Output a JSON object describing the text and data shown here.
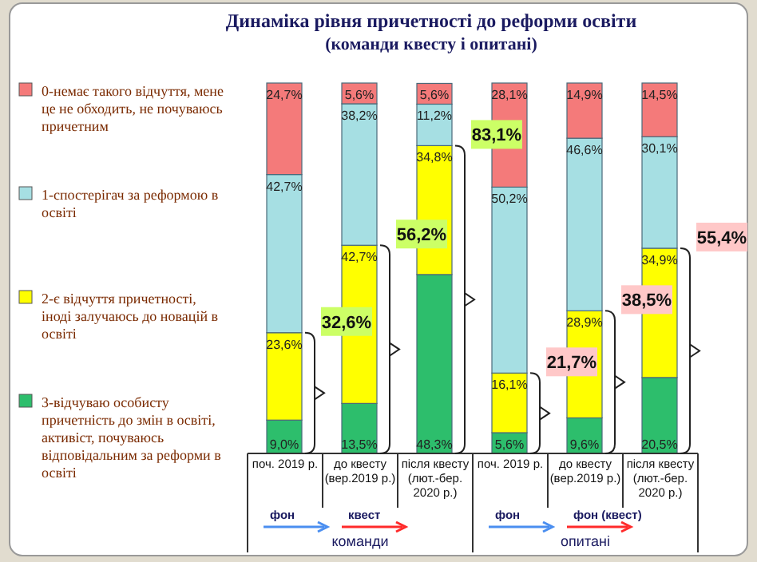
{
  "chart_data": {
    "type": "bar",
    "stacked": true,
    "title": "Динаміка рівня причетності до реформи освіти",
    "subtitle": "(команди квесту і опитані)",
    "categories": [
      "поч. 2019 р.",
      "до квесту (вер.2019 р.)",
      "після квесту (лют.-бер. 2020 р.)",
      "поч. 2019 р.",
      "до квесту (вер.2019 р.)",
      "після квесту (лют.-бер. 2020 р.)"
    ],
    "series": [
      {
        "name": "3-відчуваю особисту причетність до змін в освіті, активіст, почуваюсь відповідальним за реформи в освіті",
        "color": "#2dbe6c",
        "values": [
          9.0,
          13.5,
          48.3,
          5.6,
          9.6,
          20.5
        ],
        "value_labels": [
          "9,0%",
          "13,5%",
          "48,3%",
          "5,6%",
          "9,6%",
          "20,5%"
        ]
      },
      {
        "name": "2-є відчуття причетності, іноді залучаюсь до новацій в освіті",
        "color": "#ffff00",
        "values": [
          23.6,
          42.7,
          34.8,
          16.1,
          28.9,
          34.9
        ],
        "value_labels": [
          "23,6%",
          "42,7%",
          "34,8%",
          "16,1%",
          "28,9%",
          "34,9%"
        ]
      },
      {
        "name": "1-спостерігач за реформою в освіті",
        "color": "#a6dfe3",
        "values": [
          42.7,
          38.2,
          11.2,
          50.2,
          46.6,
          30.1
        ],
        "value_labels": [
          "42,7%",
          "38,2%",
          "11,2%",
          "50,2%",
          "46,6%",
          "30,1%"
        ]
      },
      {
        "name": "0-немає такого відчуття, мене це не обходить, не почуваюсь причетним",
        "color": "#f47a7a",
        "values": [
          24.7,
          5.6,
          5.6,
          28.1,
          14.9,
          14.5
        ],
        "value_labels": [
          "24,7%",
          "5,6%",
          "5,6%",
          "28,1%",
          "14,9%",
          "14,5%"
        ]
      }
    ],
    "annotations": [
      "32,6%",
      "56,2%",
      "83,1%",
      "21,7%",
      "38,5%",
      "55,4%",
      "фон",
      "квест",
      "команди",
      "фон",
      "фон (квест)",
      "опитані"
    ],
    "legend": "left",
    "grid": false
  }
}
